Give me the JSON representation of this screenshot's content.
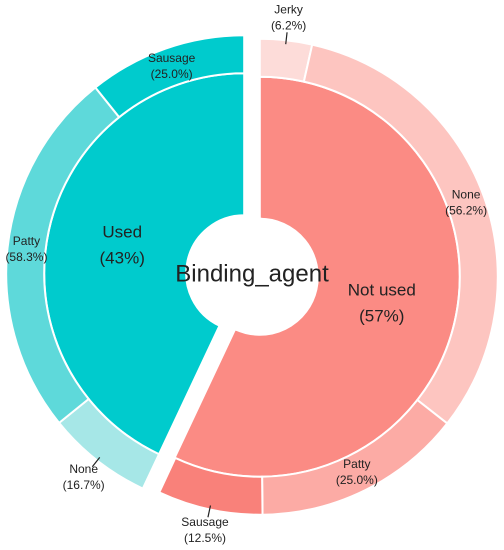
{
  "chart_data": {
    "type": "sunburst",
    "center_label": "Binding_agent",
    "groups": [
      {
        "name": "Not used",
        "value": 57,
        "value_label": "(57%)",
        "color": "#fb8b84",
        "children": [
          {
            "name": "Jerky",
            "value": 6.2,
            "value_label": "(6.2%)",
            "color": "#fddcd9"
          },
          {
            "name": "None",
            "value": 56.2,
            "value_label": "(56.2%)",
            "color": "#fdc5c0"
          },
          {
            "name": "Patty",
            "value": 25.0,
            "value_label": "(25.0%)",
            "color": "#fcaba5"
          },
          {
            "name": "Sausage",
            "value": 12.5,
            "value_label": "(12.5%)",
            "color": "#f9817a"
          }
        ]
      },
      {
        "name": "Used",
        "value": 43,
        "value_label": "(43%)",
        "color": "#00cbcd",
        "children": [
          {
            "name": "None",
            "value": 16.7,
            "value_label": "(16.7%)",
            "color": "#a6e7e7"
          },
          {
            "name": "Patty",
            "value": 58.3,
            "value_label": "(58.3%)",
            "color": "#5ed9da"
          },
          {
            "name": "Sausage",
            "value": 25.0,
            "value_label": "(25.0%)",
            "color": "#00cbcd"
          }
        ]
      }
    ]
  }
}
